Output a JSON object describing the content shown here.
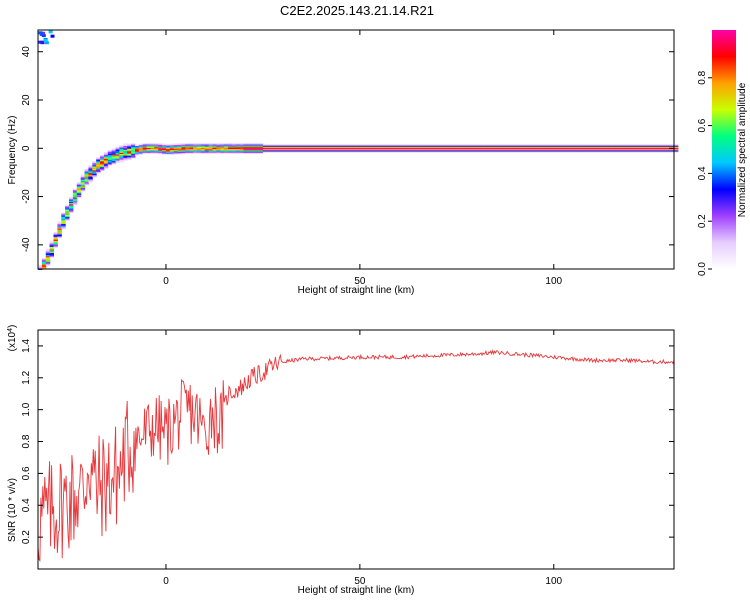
{
  "page": {
    "title": "C2E2.2025.143.21.14.R21"
  },
  "chart_data": [
    {
      "type": "heatmap",
      "xlabel": "Height of straight line (km)",
      "ylabel": "Frequency (Hz)",
      "xlim": [
        -33,
        131
      ],
      "ylim": [
        -50,
        49
      ],
      "x_ticks": [
        0,
        50,
        100
      ],
      "y_ticks": [
        -40,
        -20,
        0,
        20,
        40
      ],
      "grid": false,
      "colorbar": {
        "label": "Normalized spectral amplitude",
        "range": [
          0,
          1
        ],
        "ticks": [
          "0.0",
          "0.2",
          "0.4",
          "0.6",
          "0.8"
        ],
        "colors": [
          "#ffffff",
          "#e6ccff",
          "#a040ff",
          "#0000ff",
          "#00c8ff",
          "#00ff80",
          "#c8ff00",
          "#ffa000",
          "#ff0000",
          "#ff00aa"
        ]
      },
      "ridge": {
        "x": [
          -33,
          -30,
          -27,
          -24,
          -21,
          -18,
          -15,
          -12,
          -9,
          -6,
          -3,
          0,
          5,
          10,
          15,
          20,
          40,
          60,
          80,
          100,
          120,
          131
        ],
        "y": [
          -52,
          -42,
          -30,
          -20,
          -12,
          -7,
          -4,
          -2,
          -1,
          0,
          0,
          -0.5,
          0,
          0,
          0,
          0,
          0,
          0,
          0,
          0,
          0,
          0
        ]
      }
    },
    {
      "type": "line",
      "xlabel": "Height of straight line (km)",
      "ylabel": "SNR (10 * v/v)",
      "y_multiplier": "(x10",
      "y_multiplier_exp": "4",
      "y_multiplier_close": ")",
      "xlim": [
        -33,
        131
      ],
      "ylim": [
        0,
        1.5
      ],
      "x_ticks": [
        0,
        50,
        100
      ],
      "y_ticks": [
        "0.2",
        "0.4",
        "0.6",
        "0.8",
        "1.0",
        "1.2",
        "1.4"
      ],
      "grid": false,
      "color": "#e8363a",
      "series": [
        {
          "x": [
            -33,
            -30,
            -27,
            -24,
            -21,
            -20,
            -18,
            -15,
            -12,
            -10,
            -8,
            -5,
            -3,
            0,
            3,
            6,
            8,
            10,
            12,
            14,
            16,
            18,
            20,
            22,
            24,
            26,
            28,
            30,
            33,
            36,
            40,
            50,
            60,
            70,
            80,
            85,
            90,
            95,
            100,
            105,
            110,
            115,
            120,
            125,
            131
          ],
          "y": [
            0.3,
            0.35,
            0.4,
            0.45,
            0.5,
            0.7,
            0.5,
            0.55,
            0.6,
            0.75,
            0.8,
            0.85,
            0.9,
            0.85,
            0.95,
            1.0,
            0.95,
            0.85,
            1.0,
            0.9,
            1.1,
            1.12,
            1.15,
            1.2,
            1.22,
            1.25,
            1.28,
            1.3,
            1.31,
            1.32,
            1.32,
            1.33,
            1.33,
            1.34,
            1.35,
            1.36,
            1.35,
            1.34,
            1.33,
            1.32,
            1.31,
            1.31,
            1.31,
            1.3,
            1.3
          ]
        }
      ]
    }
  ]
}
